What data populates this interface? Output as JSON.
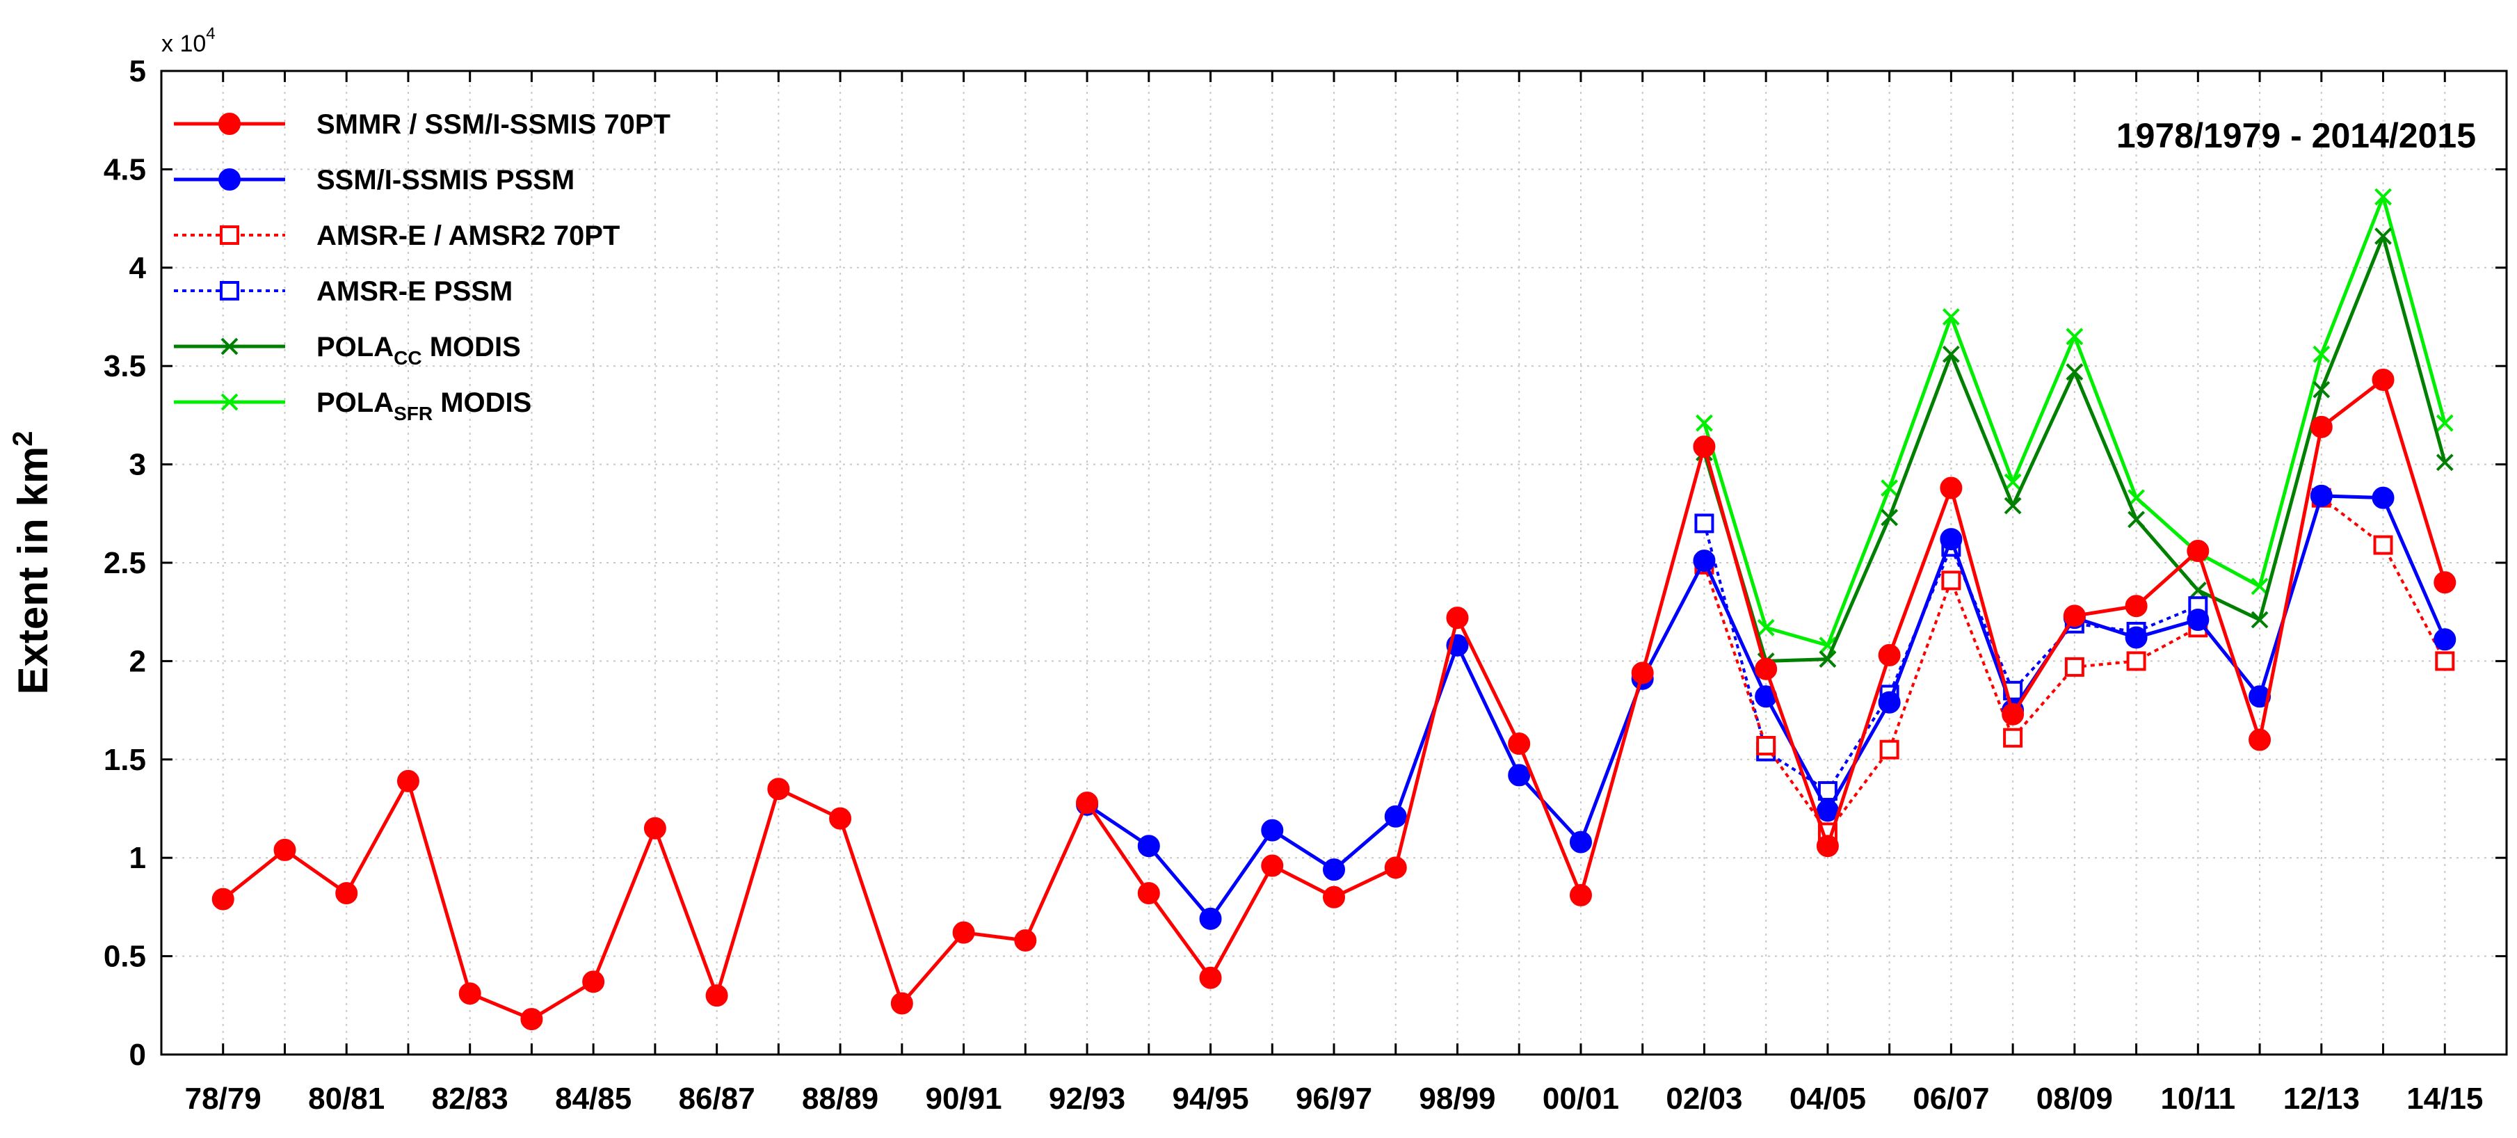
{
  "chart_data": {
    "type": "line",
    "title": "",
    "annotation": "1978/1979 - 2014/2015",
    "xlabel": "",
    "ylabel": "Extent in km",
    "ylabel_superscript": "2",
    "y_multiplier_label": "x 10",
    "y_multiplier_exponent": "4",
    "ylim": [
      0,
      5
    ],
    "yticks": [
      "0",
      "0.5",
      "1",
      "1.5",
      "2",
      "2.5",
      "3",
      "3.5",
      "4",
      "4.5",
      "5"
    ],
    "grid": true,
    "legend_position": "top-left",
    "categories": [
      "78/79",
      "79/80",
      "80/81",
      "81/82",
      "82/83",
      "83/84",
      "84/85",
      "85/86",
      "86/87",
      "87/88",
      "88/89",
      "89/90",
      "90/91",
      "91/92",
      "92/93",
      "93/94",
      "94/95",
      "95/96",
      "96/97",
      "97/98",
      "98/99",
      "99/00",
      "00/01",
      "01/02",
      "02/03",
      "03/04",
      "04/05",
      "05/06",
      "06/07",
      "07/08",
      "08/09",
      "09/10",
      "10/11",
      "11/12",
      "12/13",
      "13/14",
      "14/15"
    ],
    "xtick_labels": [
      "78/79",
      "",
      "80/81",
      "",
      "82/83",
      "",
      "84/85",
      "",
      "86/87",
      "",
      "88/89",
      "",
      "90/91",
      "",
      "92/93",
      "",
      "94/95",
      "",
      "96/97",
      "",
      "98/99",
      "",
      "00/01",
      "",
      "02/03",
      "",
      "04/05",
      "",
      "06/07",
      "",
      "08/09",
      "",
      "10/11",
      "",
      "12/13",
      "",
      "14/15"
    ],
    "series": [
      {
        "name": "SMMR / SSM/I-SSMIS 70PT",
        "color": "#ff0000",
        "line": "solid",
        "marker": "filled-circle",
        "values": [
          0.79,
          1.04,
          0.82,
          1.39,
          0.31,
          0.18,
          0.37,
          1.15,
          0.3,
          1.35,
          1.2,
          0.26,
          0.62,
          0.58,
          1.28,
          0.82,
          0.39,
          0.96,
          0.8,
          0.95,
          2.22,
          1.58,
          0.81,
          1.94,
          3.09,
          1.96,
          1.06,
          2.03,
          2.88,
          1.73,
          2.23,
          2.28,
          2.56,
          1.6,
          3.19,
          3.43,
          2.4
        ]
      },
      {
        "name": "SSM/I-SSMIS PSSM",
        "color": "#0000ff",
        "line": "solid",
        "marker": "filled-circle",
        "values": [
          null,
          null,
          null,
          null,
          null,
          null,
          null,
          null,
          null,
          null,
          null,
          null,
          null,
          null,
          1.27,
          1.06,
          0.69,
          1.14,
          0.94,
          1.21,
          2.08,
          1.42,
          1.08,
          1.91,
          2.51,
          1.82,
          1.24,
          1.79,
          2.62,
          1.75,
          2.22,
          2.12,
          2.21,
          1.82,
          2.84,
          2.83,
          2.11
        ]
      },
      {
        "name": "AMSR-E / AMSR2 70PT",
        "color": "#ff0000",
        "line": "dotted",
        "marker": "open-square",
        "values": [
          null,
          null,
          null,
          null,
          null,
          null,
          null,
          null,
          null,
          null,
          null,
          null,
          null,
          null,
          null,
          null,
          null,
          null,
          null,
          null,
          null,
          null,
          null,
          null,
          2.49,
          1.57,
          1.13,
          1.55,
          2.41,
          1.61,
          1.97,
          2.0,
          2.17,
          null,
          2.83,
          2.59,
          2.0
        ]
      },
      {
        "name": "AMSR-E PSSM",
        "color": "#0000ff",
        "line": "dotted",
        "marker": "open-square",
        "values": [
          null,
          null,
          null,
          null,
          null,
          null,
          null,
          null,
          null,
          null,
          null,
          null,
          null,
          null,
          null,
          null,
          null,
          null,
          null,
          null,
          null,
          null,
          null,
          null,
          2.7,
          1.54,
          1.34,
          1.83,
          2.58,
          1.85,
          2.19,
          2.15,
          2.28,
          null,
          null,
          null,
          null
        ]
      },
      {
        "name": "POLA",
        "subscript": "CC",
        "suffix": " MODIS",
        "color": "#008000",
        "line": "solid",
        "marker": "x",
        "values": [
          null,
          null,
          null,
          null,
          null,
          null,
          null,
          null,
          null,
          null,
          null,
          null,
          null,
          null,
          null,
          null,
          null,
          null,
          null,
          null,
          null,
          null,
          null,
          null,
          3.06,
          2.0,
          2.01,
          2.73,
          3.56,
          2.79,
          3.47,
          2.72,
          2.36,
          2.21,
          3.38,
          4.16,
          3.01
        ]
      },
      {
        "name": "POLA",
        "subscript": "SFR",
        "suffix": " MODIS",
        "color": "#00ee00",
        "line": "solid",
        "marker": "x",
        "values": [
          null,
          null,
          null,
          null,
          null,
          null,
          null,
          null,
          null,
          null,
          null,
          null,
          null,
          null,
          null,
          null,
          null,
          null,
          null,
          null,
          null,
          null,
          null,
          null,
          3.21,
          2.17,
          2.08,
          2.88,
          3.75,
          2.91,
          3.65,
          2.83,
          2.55,
          2.38,
          3.56,
          4.36,
          3.21
        ]
      }
    ]
  }
}
